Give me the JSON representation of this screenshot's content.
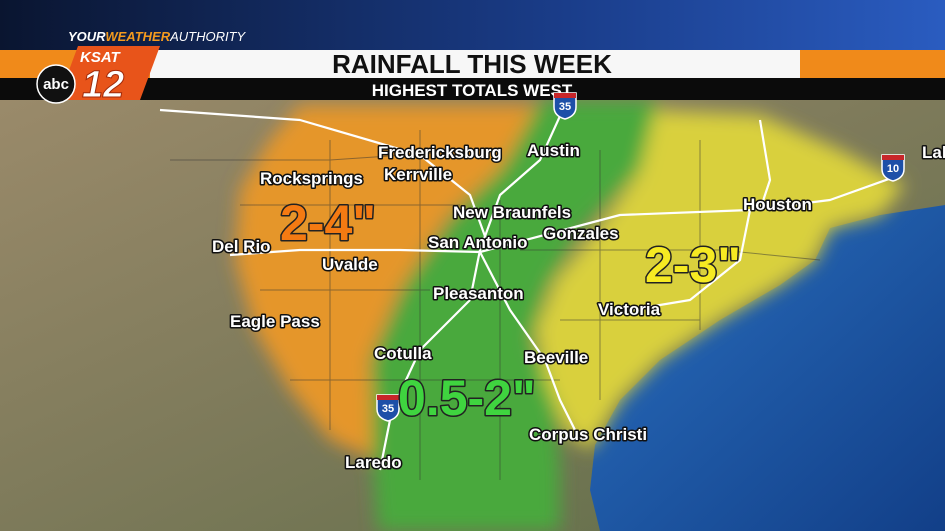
{
  "header": {
    "brand": [
      "YOUR",
      "WEATHER",
      "AUTHORITY"
    ],
    "logo": {
      "network": "abc",
      "station": "KSAT",
      "channel": "12"
    },
    "title": "RAINFALL THIS WEEK",
    "subtitle": "HIGHEST TOTALS WEST"
  },
  "map": {
    "zones": [
      {
        "label": "2-4\"",
        "color": "#e5962a",
        "text_color": "#f47a12"
      },
      {
        "label": "0.5-2\"",
        "color": "#4aa93c",
        "text_color": "#3fd43f"
      },
      {
        "label": "2-3\"",
        "color": "#d9d03e",
        "text_color": "#f6ea22"
      }
    ],
    "cities": [
      "Fredericksburg",
      "Austin",
      "Rocksprings",
      "Kerrville",
      "New Braunfels",
      "Houston",
      "Del Rio",
      "San Antonio",
      "Gonzales",
      "Uvalde",
      "Pleasanton",
      "Victoria",
      "Eagle Pass",
      "Cotulla",
      "Beeville",
      "Corpus Christi",
      "Laredo",
      "Lak"
    ],
    "shields": [
      "35",
      "35",
      "10"
    ]
  }
}
